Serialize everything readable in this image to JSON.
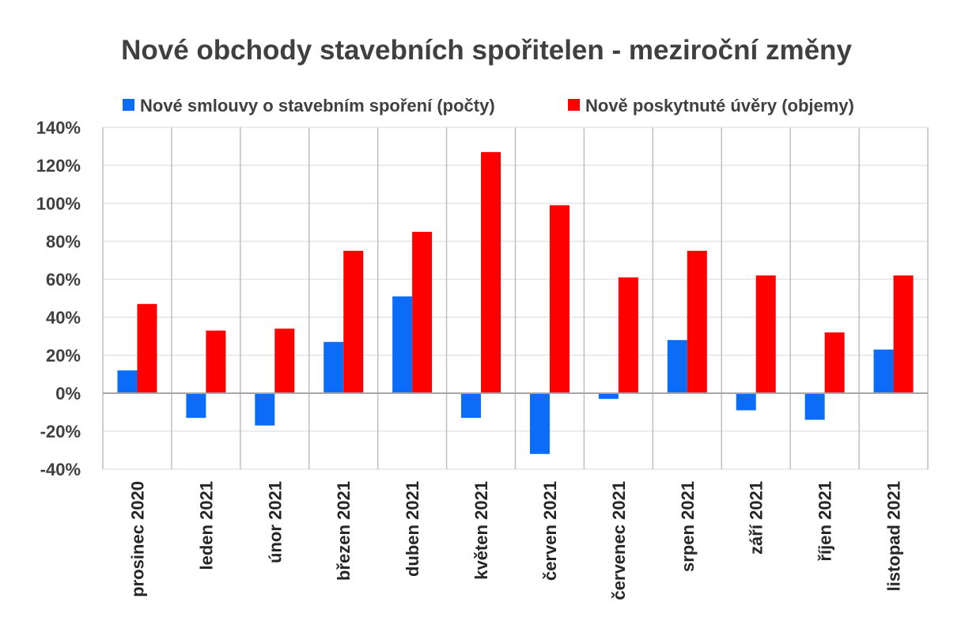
{
  "chart_data": {
    "type": "bar",
    "title": "Nové obchody stavebních spořitelen - meziroční změny",
    "categories": [
      "prosinec 2020",
      "leden 2021",
      "únor 2021",
      "březen 2021",
      "duben 2021",
      "květen 2021",
      "červen 2021",
      "červenec 2021",
      "srpen 2021",
      "září 2021",
      "říjen 2021",
      "listopad 2021"
    ],
    "series": [
      {
        "name": "Nové smlouvy o stavebním spoření (počty)",
        "color": "#0b6cf7",
        "values": [
          12,
          -13,
          -17,
          27,
          51,
          -13,
          -32,
          -3,
          28,
          -9,
          -14,
          23
        ]
      },
      {
        "name": "Nově poskytnuté úvěry (objemy)",
        "color": "#ff0000",
        "values": [
          47,
          33,
          34,
          75,
          85,
          127,
          99,
          61,
          75,
          62,
          32,
          62
        ]
      }
    ],
    "ylim": [
      -40,
      140
    ],
    "ytick_step": 20,
    "ytick_labels": [
      "140%",
      "120%",
      "100%",
      "80%",
      "60%",
      "40%",
      "20%",
      "0%",
      "-20%",
      "-40%"
    ],
    "xlabel": "",
    "ylabel": "",
    "grid": true,
    "legend_position": "top"
  }
}
